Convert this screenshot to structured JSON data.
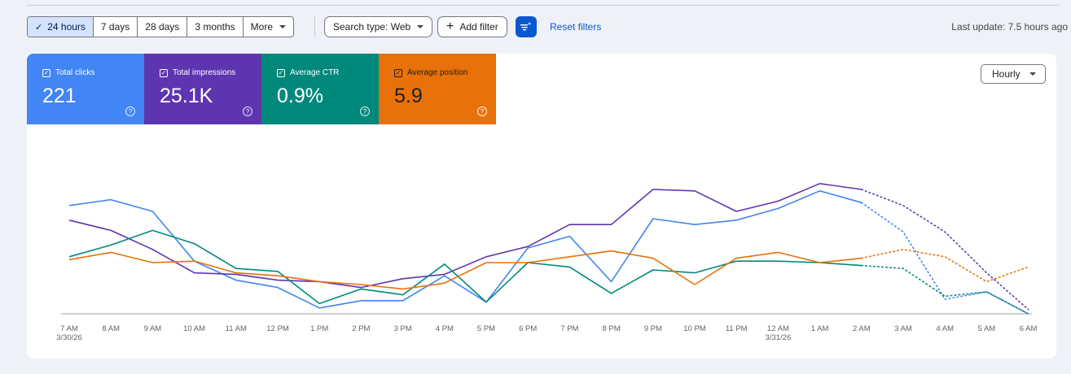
{
  "toolbar": {
    "range_options": [
      "24 hours",
      "7 days",
      "28 days",
      "3 months",
      "More"
    ],
    "active_range": "24 hours",
    "search_type": "Search type: Web",
    "add_filter": "Add filter",
    "reset_filters": "Reset filters",
    "last_update": "Last update: 7.5 hours ago"
  },
  "metrics": [
    {
      "label": "Total clicks",
      "value": "221",
      "color": "#4285f4"
    },
    {
      "label": "Total impressions",
      "value": "25.1K",
      "color": "#5e35b1"
    },
    {
      "label": "Average CTR",
      "value": "0.9%",
      "color": "#00897b"
    },
    {
      "label": "Average position",
      "value": "5.9",
      "color": "#e8710a"
    }
  ],
  "granularity": "Hourly",
  "chart_data": {
    "type": "line",
    "x": [
      "7 AM",
      "8 AM",
      "9 AM",
      "10 AM",
      "11 AM",
      "12 PM",
      "1 PM",
      "2 PM",
      "3 PM",
      "4 PM",
      "5 PM",
      "6 PM",
      "7 PM",
      "8 PM",
      "9 PM",
      "10 PM",
      "11 PM",
      "12 AM",
      "1 AM",
      "2 AM",
      "3 AM",
      "4 AM",
      "5 AM",
      "6 AM"
    ],
    "tick_labels": [
      "7 AM",
      "8 AM",
      "9 AM",
      "10 AM",
      "11 AM",
      "12 PM",
      "1 PM",
      "2 PM",
      "3 PM",
      "4 PM",
      "5 PM",
      "6 PM",
      "7 PM",
      "8 PM",
      "9 PM",
      "10 PM",
      "11 PM",
      "12 AM",
      "1 AM",
      "2 AM",
      "3 AM",
      "4 AM",
      "5 AM",
      "6 AM"
    ],
    "tick_sublabels": {
      "0": "3/30/26",
      "17": "3/31/26"
    },
    "y_scale_note": "Each series scaled independently, no y-axis labels shown",
    "solid_until_index": 19,
    "series": [
      {
        "color": "#4285f4",
        "values": [
          0.74,
          0.78,
          0.7,
          0.36,
          0.23,
          0.18,
          0.04,
          0.09,
          0.09,
          0.26,
          0.08,
          0.45,
          0.53,
          0.22,
          0.65,
          0.61,
          0.64,
          0.72,
          0.84,
          0.76,
          0.56,
          0.1,
          0.15,
          0.0
        ]
      },
      {
        "color": "#5e35b1",
        "values": [
          0.64,
          0.57,
          0.44,
          0.28,
          0.27,
          0.23,
          0.22,
          0.18,
          0.24,
          0.27,
          0.39,
          0.46,
          0.61,
          0.61,
          0.85,
          0.84,
          0.7,
          0.77,
          0.89,
          0.85,
          0.74,
          0.56,
          0.28,
          0.03
        ]
      },
      {
        "color": "#00897b",
        "values": [
          0.39,
          0.47,
          0.57,
          0.48,
          0.31,
          0.29,
          0.07,
          0.17,
          0.13,
          0.34,
          0.08,
          0.35,
          0.32,
          0.14,
          0.3,
          0.28,
          0.36,
          0.36,
          0.35,
          0.33,
          0.31,
          0.12,
          0.15,
          0.0
        ]
      },
      {
        "color": "#e8710a",
        "values": [
          0.37,
          0.42,
          0.35,
          0.36,
          0.28,
          0.26,
          0.22,
          0.2,
          0.17,
          0.21,
          0.35,
          0.35,
          0.39,
          0.43,
          0.38,
          0.2,
          0.38,
          0.42,
          0.35,
          0.38,
          0.44,
          0.39,
          0.22,
          0.32
        ]
      }
    ]
  }
}
